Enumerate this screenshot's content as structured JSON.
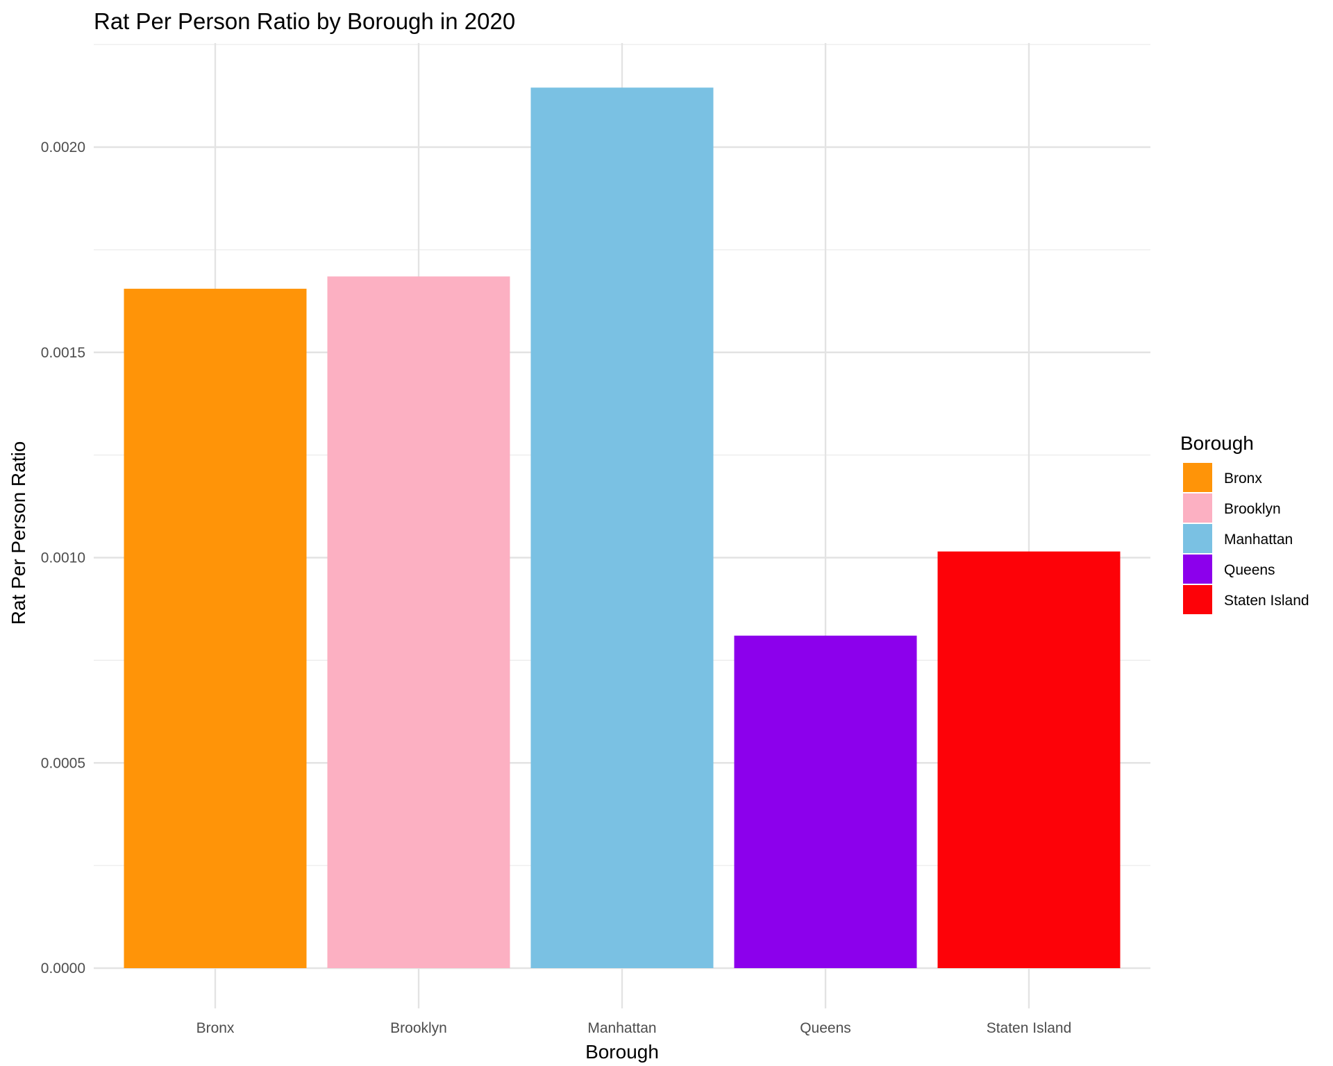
{
  "chart_data": {
    "type": "bar",
    "title": "Rat Per Person Ratio by Borough in 2020",
    "xlabel": "Borough",
    "ylabel": "Rat Per Person Ratio",
    "categories": [
      "Bronx",
      "Brooklyn",
      "Manhattan",
      "Queens",
      "Staten Island"
    ],
    "values": [
      0.001655,
      0.001685,
      0.002145,
      0.00081,
      0.001015
    ],
    "colors": [
      "#FF9408",
      "#FCB0C2",
      "#7AC1E3",
      "#8C00EC",
      "#FD0208"
    ],
    "ylim": [
      0,
      0.00225
    ],
    "yticks": [
      0,
      0.0005,
      0.001,
      0.0015,
      0.002
    ],
    "ytick_labels": [
      "0.0000",
      "0.0005",
      "0.0010",
      "0.0015",
      "0.0020"
    ],
    "grid": true,
    "legend": {
      "title": "Borough",
      "position": "right",
      "entries": [
        "Bronx",
        "Brooklyn",
        "Manhattan",
        "Queens",
        "Staten Island"
      ]
    }
  }
}
